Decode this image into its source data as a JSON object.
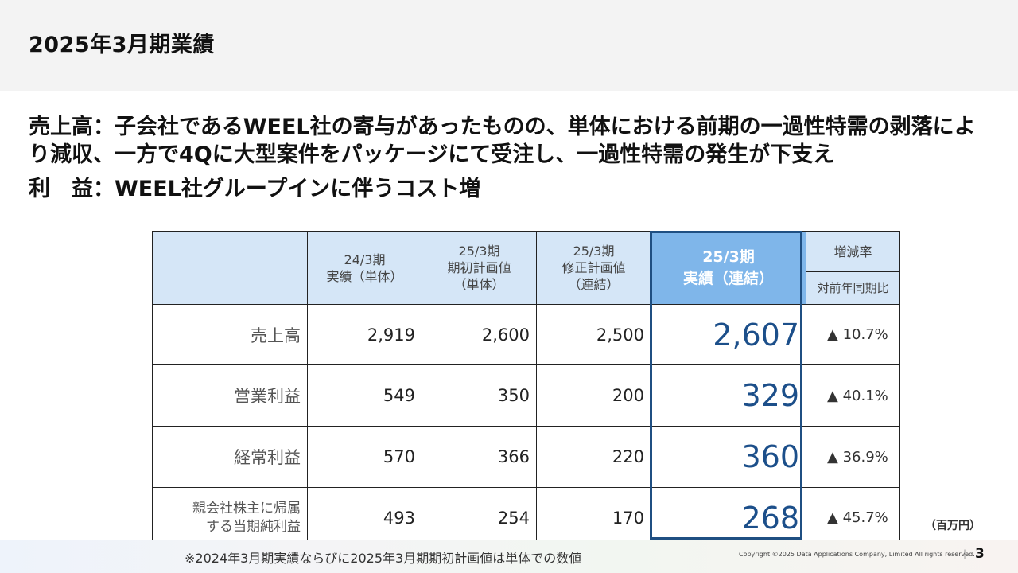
{
  "header": {
    "title": "2025年3月期業績"
  },
  "summary": {
    "sales_text": "売上高：子会社であるWEEL社の寄与があったものの、単体における前期の一過性特需の剥落により減収、一方で4Qに大型案件をパッケージにて受注し、一過性特需の発生が下支え",
    "profit_text": "利　益：WEEL社グループインに伴うコスト増"
  },
  "table": {
    "headers": [
      {
        "line1": "",
        "line2": ""
      },
      {
        "line1": "24/3期",
        "line2": "実績（単体）"
      },
      {
        "line1": "25/3期",
        "line2": "期初計画値",
        "line3": "（単体）"
      },
      {
        "line1": "25/3期",
        "line2": "修正計画値",
        "line3": "（連結）"
      },
      {
        "line1": "25/3期",
        "line2": "実績（連結）"
      },
      {
        "line1": "増減率",
        "line2": "対前年同期比"
      }
    ],
    "rows": [
      {
        "label": "売上高",
        "fy24_actual": "2,919",
        "fy25_initial_plan": "2,600",
        "fy25_revised_plan": "2,500",
        "fy25_actual": "2,607",
        "yoy_change": "▲ 10.7%"
      },
      {
        "label": "営業利益",
        "fy24_actual": "549",
        "fy25_initial_plan": "350",
        "fy25_revised_plan": "200",
        "fy25_actual": "329",
        "yoy_change": "▲ 40.1%"
      },
      {
        "label": "経常利益",
        "fy24_actual": "570",
        "fy25_initial_plan": "366",
        "fy25_revised_plan": "220",
        "fy25_actual": "360",
        "yoy_change": "▲ 36.9%"
      },
      {
        "label_line1": "親会社株主に帰属",
        "label_line2": "する当期純利益",
        "fy24_actual": "493",
        "fy25_initial_plan": "254",
        "fy25_revised_plan": "170",
        "fy25_actual": "268",
        "yoy_change": "▲ 45.7%"
      }
    ],
    "unit": "（百万円）"
  },
  "footer": {
    "note": "※2024年3月期実績ならびに2025年3月期期初計画値は単体での数値",
    "copyright": "Copyright ©2025 Data Applications Company, Limited All rights reserved.",
    "page_number": "3"
  },
  "colors": {
    "header_bg": "#d5e6f7",
    "highlight_header_bg": "#7fb6ea",
    "highlight_border": "#1f4f82",
    "highlight_value": "#1c4f8a"
  }
}
